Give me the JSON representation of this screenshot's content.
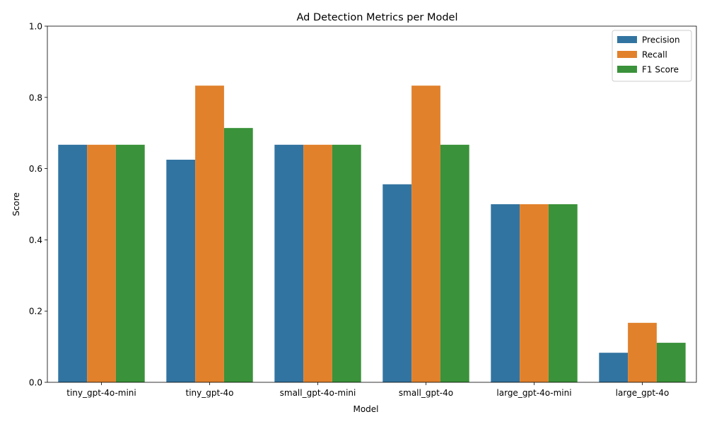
{
  "chart_data": {
    "type": "bar",
    "title": "Ad Detection Metrics per Model",
    "xlabel": "Model",
    "ylabel": "Score",
    "ylim": [
      0,
      1.0
    ],
    "yticks": [
      "0.0",
      "0.2",
      "0.4",
      "0.6",
      "0.8",
      "1.0"
    ],
    "categories": [
      "tiny_gpt-4o-mini",
      "tiny_gpt-4o",
      "small_gpt-4o-mini",
      "small_gpt-4o",
      "large_gpt-4o-mini",
      "large_gpt-4o"
    ],
    "series": [
      {
        "name": "Precision",
        "color": "#3274a1",
        "values": [
          0.667,
          0.625,
          0.667,
          0.556,
          0.5,
          0.083
        ]
      },
      {
        "name": "Recall",
        "color": "#e1812c",
        "values": [
          0.667,
          0.833,
          0.667,
          0.833,
          0.5,
          0.167
        ]
      },
      {
        "name": "F1 Score",
        "color": "#3a923a",
        "values": [
          0.667,
          0.714,
          0.667,
          0.667,
          0.5,
          0.111
        ]
      }
    ],
    "legend_position": "top-right",
    "grid": false
  }
}
